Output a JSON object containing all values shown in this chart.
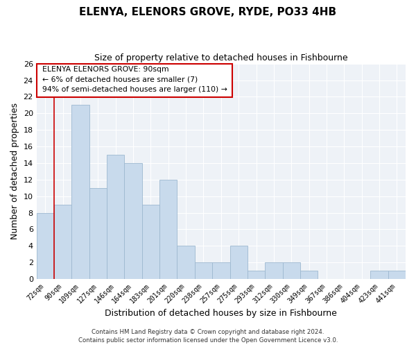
{
  "title": "ELENYA, ELENORS GROVE, RYDE, PO33 4HB",
  "subtitle": "Size of property relative to detached houses in Fishbourne",
  "xlabel": "Distribution of detached houses by size in Fishbourne",
  "ylabel": "Number of detached properties",
  "bar_color": "#c8daec",
  "bar_edge_color": "#9db8d0",
  "background_color": "#eef2f7",
  "tick_labels": [
    "72sqm",
    "90sqm",
    "109sqm",
    "127sqm",
    "146sqm",
    "164sqm",
    "183sqm",
    "201sqm",
    "220sqm",
    "238sqm",
    "257sqm",
    "275sqm",
    "293sqm",
    "312sqm",
    "330sqm",
    "349sqm",
    "367sqm",
    "386sqm",
    "404sqm",
    "423sqm",
    "441sqm"
  ],
  "bar_heights": [
    8,
    9,
    21,
    11,
    15,
    14,
    9,
    12,
    4,
    2,
    2,
    4,
    1,
    2,
    2,
    1,
    0,
    0,
    0,
    1,
    1
  ],
  "ylim": [
    0,
    26
  ],
  "yticks": [
    0,
    2,
    4,
    6,
    8,
    10,
    12,
    14,
    16,
    18,
    20,
    22,
    24,
    26
  ],
  "annotation_line1": "ELENYA ELENORS GROVE: 90sqm",
  "annotation_line2": "← 6% of detached houses are smaller (7)",
  "annotation_line3": "94% of semi-detached houses are larger (110) →",
  "red_line_x": 1,
  "footer_line1": "Contains HM Land Registry data © Crown copyright and database right 2024.",
  "footer_line2": "Contains public sector information licensed under the Open Government Licence v3.0."
}
